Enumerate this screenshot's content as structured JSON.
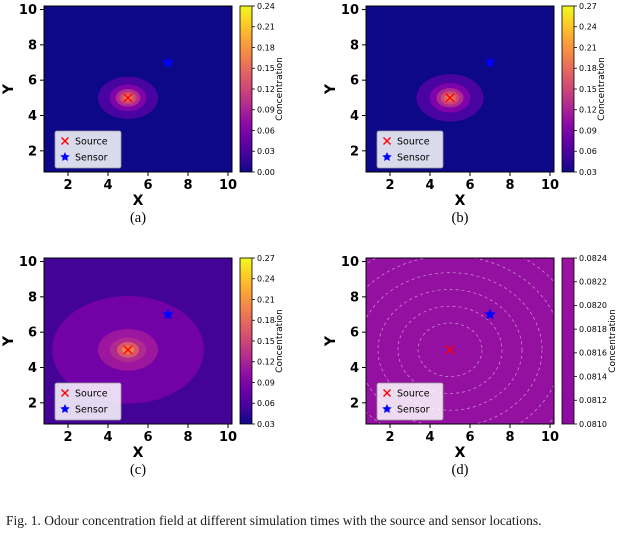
{
  "figure": {
    "caption": "Fig. 1.  Odour concentration field at different simulation times with the source and sensor locations.",
    "panels": [
      "(a)",
      "(b)",
      "(c)",
      "(d)"
    ]
  },
  "colors": {
    "plasma_stops": [
      "#0d0887",
      "#41049d",
      "#6a00a8",
      "#8f0da4",
      "#b12a90",
      "#cc4778",
      "#e16462",
      "#f2844b",
      "#fca636",
      "#fcce25",
      "#f0f921"
    ],
    "source_marker": "#ff0000",
    "sensor_marker": "#0000ff",
    "axis": "#000000",
    "legend_border": "#999999",
    "legend_background": "#ffffff"
  },
  "chart_data": [
    {
      "id": "a",
      "type": "heatmap",
      "panel_label": "(a)",
      "xlabel": "X",
      "ylabel": "Y",
      "xlim": [
        0.8,
        10.2
      ],
      "ylim": [
        0.8,
        10.2
      ],
      "xticks": [
        2,
        4,
        6,
        8,
        10
      ],
      "yticks": [
        2,
        4,
        6,
        8,
        10
      ],
      "colorbar": {
        "label": "Concentration",
        "min": 0.0,
        "max": 0.24,
        "ticks": [
          "0.00",
          "0.03",
          "0.06",
          "0.09",
          "0.12",
          "0.15",
          "0.18",
          "0.21",
          "0.24"
        ],
        "style": "plasma",
        "label_offset": 30
      },
      "legend": {
        "source_label": "Source",
        "sensor_label": "Sensor"
      },
      "source": {
        "x": 5,
        "y": 5
      },
      "sensor": {
        "x": 7,
        "y": 7
      },
      "field": {
        "background": "#0d0887",
        "bands": [
          {
            "rx": 1.5,
            "ry": 1.2,
            "color": "#4903a0"
          },
          {
            "rx": 0.92,
            "ry": 0.76,
            "color": "#7e03a8"
          },
          {
            "rx": 0.62,
            "ry": 0.5,
            "color": "#b12a90"
          },
          {
            "rx": 0.43,
            "ry": 0.35,
            "color": "#cc4778"
          },
          {
            "rx": 0.28,
            "ry": 0.23,
            "color": "#e16462"
          },
          {
            "rx": 0.15,
            "ry": 0.12,
            "color": "#f2844b"
          }
        ]
      }
    },
    {
      "id": "b",
      "type": "heatmap",
      "panel_label": "(b)",
      "xlabel": "X",
      "ylabel": "Y",
      "xlim": [
        0.8,
        10.2
      ],
      "ylim": [
        0.8,
        10.2
      ],
      "xticks": [
        2,
        4,
        6,
        8,
        10
      ],
      "yticks": [
        2,
        4,
        6,
        8,
        10
      ],
      "colorbar": {
        "label": "Concentration",
        "min": 0.03,
        "max": 0.27,
        "ticks": [
          "0.03",
          "0.06",
          "0.09",
          "0.12",
          "0.15",
          "0.18",
          "0.21",
          "0.24",
          "0.27"
        ],
        "style": "plasma",
        "label_offset": 30
      },
      "legend": {
        "source_label": "Source",
        "sensor_label": "Sensor"
      },
      "source": {
        "x": 5,
        "y": 5
      },
      "sensor": {
        "x": 7,
        "y": 7
      },
      "field": {
        "background": "#0d0887",
        "bands": [
          {
            "rx": 1.68,
            "ry": 1.34,
            "color": "#4903a0"
          },
          {
            "rx": 1.02,
            "ry": 0.84,
            "color": "#7e03a8"
          },
          {
            "rx": 0.68,
            "ry": 0.55,
            "color": "#b12a90"
          },
          {
            "rx": 0.47,
            "ry": 0.38,
            "color": "#cc4778"
          },
          {
            "rx": 0.3,
            "ry": 0.25,
            "color": "#e16462"
          },
          {
            "rx": 0.16,
            "ry": 0.13,
            "color": "#f2844b"
          }
        ]
      }
    },
    {
      "id": "c",
      "type": "heatmap",
      "panel_label": "(c)",
      "xlabel": "X",
      "ylabel": "Y",
      "xlim": [
        0.8,
        10.2
      ],
      "ylim": [
        0.8,
        10.2
      ],
      "xticks": [
        2,
        4,
        6,
        8,
        10
      ],
      "yticks": [
        2,
        4,
        6,
        8,
        10
      ],
      "colorbar": {
        "label": "Concentration",
        "min": 0.03,
        "max": 0.27,
        "ticks": [
          "0.03",
          "0.06",
          "0.09",
          "0.12",
          "0.15",
          "0.18",
          "0.21",
          "0.24",
          "0.27"
        ],
        "style": "plasma",
        "label_offset": 30
      },
      "legend": {
        "source_label": "Source",
        "sensor_label": "Sensor"
      },
      "source": {
        "x": 5,
        "y": 5
      },
      "sensor": {
        "x": 7,
        "y": 7
      },
      "field": {
        "background": "#440397",
        "bands": [
          {
            "rx": 3.8,
            "ry": 3.05,
            "color": "#7201a8"
          },
          {
            "rx": 1.5,
            "ry": 1.18,
            "color": "#9c179e"
          },
          {
            "rx": 0.9,
            "ry": 0.7,
            "color": "#b12a90"
          },
          {
            "rx": 0.55,
            "ry": 0.45,
            "color": "#d8576b"
          },
          {
            "rx": 0.3,
            "ry": 0.25,
            "color": "#f2844b"
          }
        ]
      }
    },
    {
      "id": "d",
      "type": "heatmap",
      "panel_label": "(d)",
      "xlabel": "X",
      "ylabel": "Y",
      "xlim": [
        0.8,
        10.2
      ],
      "ylim": [
        0.8,
        10.2
      ],
      "xticks": [
        2,
        4,
        6,
        8,
        10
      ],
      "yticks": [
        2,
        4,
        6,
        8,
        10
      ],
      "colorbar": {
        "label": "Concentration",
        "min": 0.081,
        "max": 0.0824,
        "ticks": [
          "0.0810",
          "0.0812",
          "0.0814",
          "0.0816",
          "0.0818",
          "0.0820",
          "0.0822",
          "0.0824"
        ],
        "style": "stops",
        "stops": [
          "#8d0ba3",
          "#9a14a0"
        ],
        "label_offset": 41
      },
      "legend": {
        "source_label": "Source",
        "sensor_label": "Sensor"
      },
      "source": {
        "x": 5,
        "y": 5
      },
      "sensor": {
        "x": 7,
        "y": 7
      },
      "field": {
        "background": "#9410a1",
        "bands": [],
        "dashed_contours": {
          "radii": [
            1.6,
            2.6,
            3.6,
            4.6,
            5.6,
            6.6
          ],
          "ry_ratio": 0.95,
          "color": "#d9a9de"
        }
      }
    }
  ]
}
